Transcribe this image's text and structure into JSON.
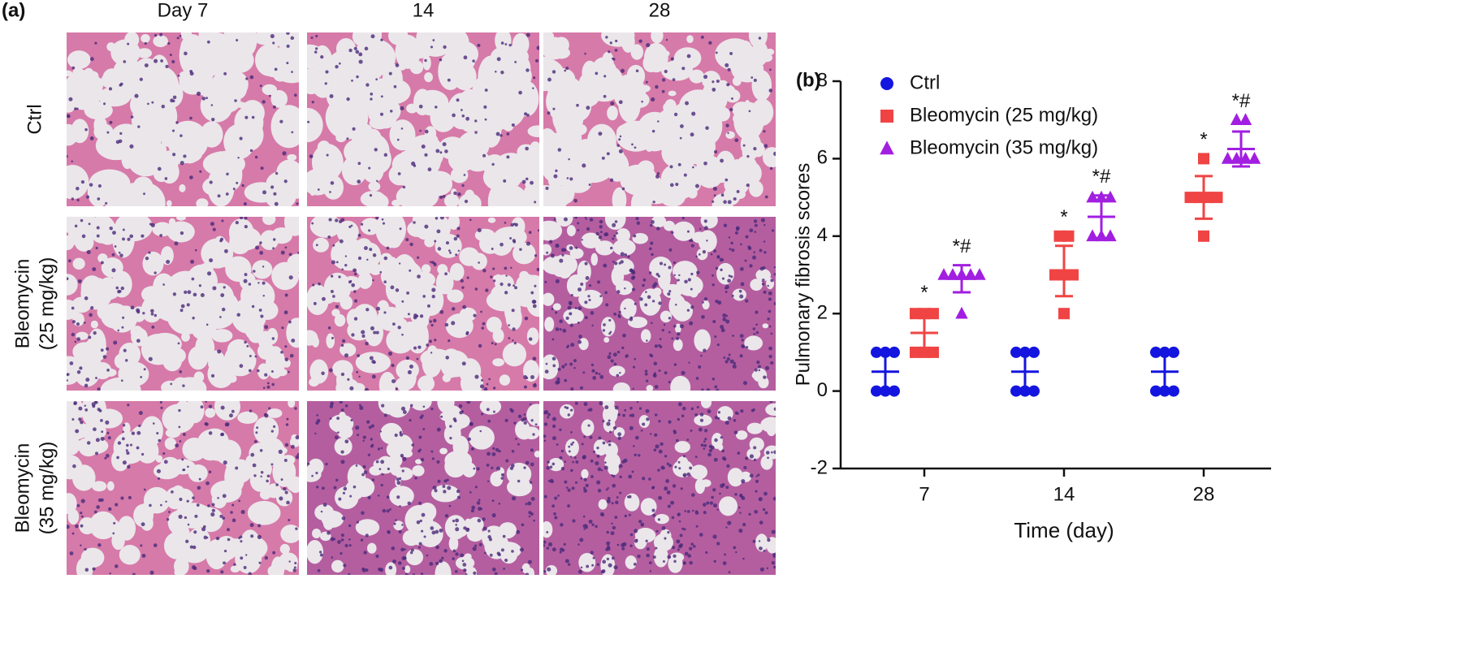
{
  "panel_a": {
    "label": "(a)",
    "columns": [
      "Day 7",
      "14",
      "28"
    ],
    "rows": [
      [
        "Ctrl"
      ],
      [
        "Bleomycin",
        "(25 mg/kg)"
      ],
      [
        "Bleomycin",
        "(35 mg/kg)"
      ]
    ]
  },
  "chart_data": {
    "type": "dot",
    "panel_label": "(b)",
    "x_label": "Time (day)",
    "y_label": "Pulmonary fibrosis scores",
    "categories": [
      "7",
      "14",
      "28"
    ],
    "ylim": [
      -2,
      8
    ],
    "yticks": [
      -2,
      0,
      2,
      4,
      6,
      8
    ],
    "legend": "upper-left",
    "series": [
      {
        "name": "Ctrl",
        "color": "#1515e0",
        "marker": "circle",
        "values": [
          0.5,
          0.5,
          0.5
        ],
        "error": [
          0.55,
          0.55,
          0.55
        ],
        "points": [
          [
            0,
            0,
            0,
            1,
            1,
            1
          ],
          [
            0,
            0,
            0,
            1,
            1,
            1
          ],
          [
            0,
            0,
            0,
            1,
            1,
            1
          ]
        ]
      },
      {
        "name": "Bleomycin (25 mg/kg)",
        "color": "#f04444",
        "marker": "square",
        "values": [
          1.5,
          3.1,
          5
        ],
        "error": [
          0.55,
          0.65,
          0.55
        ],
        "points": [
          [
            1,
            1,
            1,
            2,
            2,
            2
          ],
          [
            2,
            3,
            3,
            3,
            4,
            4
          ],
          [
            4,
            5,
            5,
            5,
            5,
            6
          ]
        ],
        "annotations": [
          "*",
          "*",
          "*"
        ]
      },
      {
        "name": "Bleomycin (35 mg/kg)",
        "color": "#a21ee0",
        "marker": "triangle",
        "values": [
          2.9,
          4.5,
          6.25
        ],
        "error": [
          0.35,
          0.55,
          0.45
        ],
        "points": [
          [
            2,
            3,
            3,
            3,
            3,
            3
          ],
          [
            4,
            4,
            4,
            5,
            5,
            5
          ],
          [
            6,
            6,
            6,
            6,
            7,
            7
          ]
        ],
        "annotations": [
          "*#",
          "*#",
          "*#"
        ]
      }
    ]
  }
}
